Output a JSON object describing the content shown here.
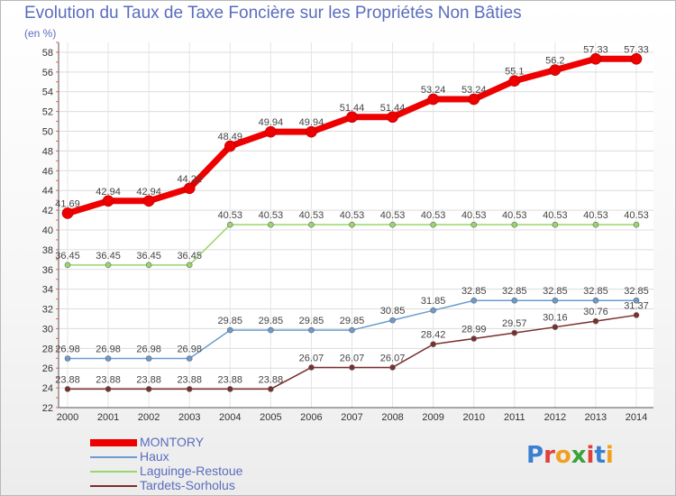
{
  "title": "Evolution du Taux de Taxe Foncière sur les Propriétés Non Bâties",
  "subtitle": "(en %)",
  "logo": {
    "text": "Proxiti",
    "colors": [
      "#3a7fd0",
      "#e0413a",
      "#f0a020",
      "#3aa33a",
      "#e0413a",
      "#3a7fd0",
      "#f0a020"
    ]
  },
  "chart_data": {
    "type": "line",
    "title": "Evolution du Taux de Taxe Foncière sur les Propriétés Non Bâties",
    "ylabel": "(en %)",
    "xlabel": "",
    "x": [
      2000,
      2001,
      2002,
      2003,
      2004,
      2005,
      2006,
      2007,
      2008,
      2009,
      2010,
      2011,
      2012,
      2013,
      2014
    ],
    "ylim": [
      22,
      59
    ],
    "yticks": [
      22,
      24,
      26,
      28,
      30,
      32,
      34,
      36,
      38,
      40,
      42,
      44,
      46,
      48,
      50,
      52,
      54,
      56,
      58
    ],
    "grid": true,
    "legend": "bottom-left",
    "series": [
      {
        "name": "MONTORY",
        "color": "#ee0000",
        "width": 7,
        "values": [
          41.69,
          42.94,
          42.94,
          44.22,
          48.49,
          49.94,
          49.94,
          51.44,
          51.44,
          53.24,
          53.24,
          55.1,
          56.2,
          57.33,
          57.33
        ]
      },
      {
        "name": "Haux",
        "color": "#6a9ccf",
        "width": 1.5,
        "values": [
          26.98,
          26.98,
          26.98,
          26.98,
          29.85,
          29.85,
          29.85,
          29.85,
          30.85,
          31.85,
          32.85,
          32.85,
          32.85,
          32.85,
          32.85
        ]
      },
      {
        "name": "Laguinge-Restoue",
        "color": "#99d66b",
        "width": 1.5,
        "values": [
          36.45,
          36.45,
          36.45,
          36.45,
          40.53,
          40.53,
          40.53,
          40.53,
          40.53,
          40.53,
          40.53,
          40.53,
          40.53,
          40.53,
          40.53
        ]
      },
      {
        "name": "Tardets-Sorholus",
        "color": "#7a2e2e",
        "width": 1.5,
        "values": [
          23.88,
          23.88,
          23.88,
          23.88,
          23.88,
          23.88,
          26.07,
          26.07,
          26.07,
          28.42,
          28.99,
          29.57,
          30.16,
          30.76,
          31.37
        ]
      }
    ]
  }
}
